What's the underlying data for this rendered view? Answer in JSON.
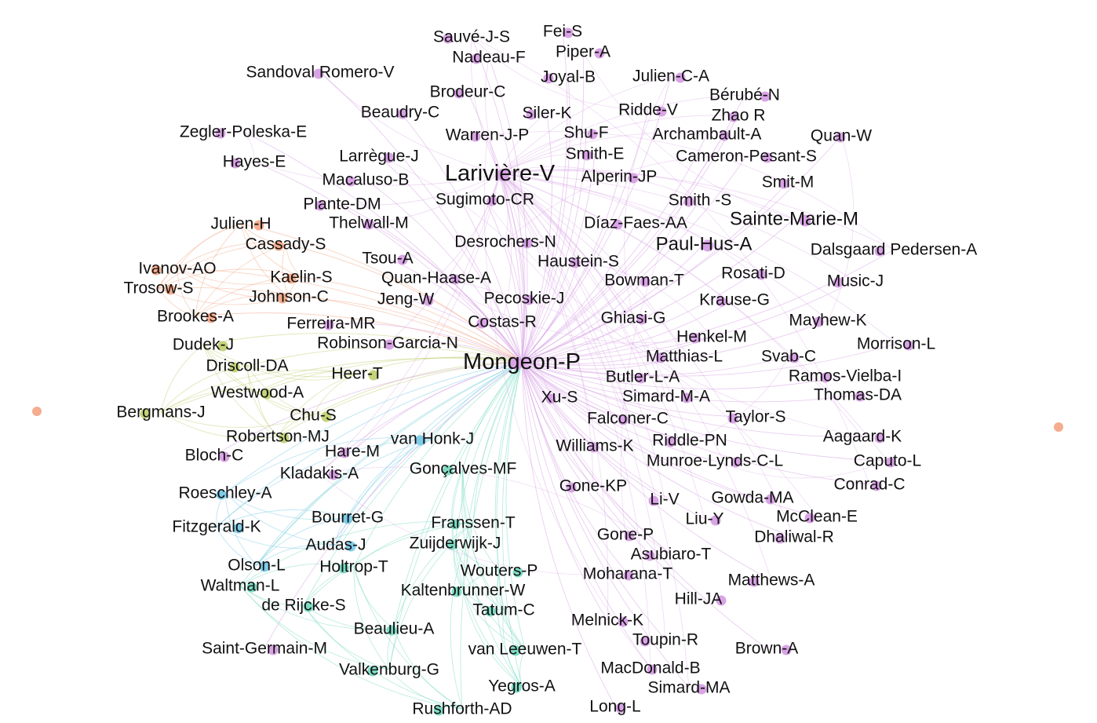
{
  "communities": {
    "purple": "#d9a4e6",
    "orange": "#f4ad8e",
    "olive": "#c5d27a",
    "blue": "#7fcce8",
    "teal": "#7ddcc4"
  },
  "nodes": [
    {
      "label": "Sauvé-J-S",
      "community": "purple",
      "emphasis": "normal"
    },
    {
      "label": "Fei-S",
      "community": "purple",
      "emphasis": "normal"
    },
    {
      "label": "Nadeau-F",
      "community": "purple",
      "emphasis": "normal"
    },
    {
      "label": "Piper-A",
      "community": "purple",
      "emphasis": "normal"
    },
    {
      "label": "Sandoval Romero-V",
      "community": "purple",
      "emphasis": "normal"
    },
    {
      "label": "Joyal-B",
      "community": "purple",
      "emphasis": "normal"
    },
    {
      "label": "Julien-C-A",
      "community": "purple",
      "emphasis": "normal"
    },
    {
      "label": "Brodeur-C",
      "community": "purple",
      "emphasis": "normal"
    },
    {
      "label": "Bérubé-N",
      "community": "purple",
      "emphasis": "normal"
    },
    {
      "label": "Beaudry-C",
      "community": "purple",
      "emphasis": "normal"
    },
    {
      "label": "Siler-K",
      "community": "purple",
      "emphasis": "normal"
    },
    {
      "label": "Ridde-V",
      "community": "purple",
      "emphasis": "normal"
    },
    {
      "label": "Zhao R",
      "community": "purple",
      "emphasis": "normal"
    },
    {
      "label": "Zegler-Poleska-E",
      "community": "purple",
      "emphasis": "normal"
    },
    {
      "label": "Shu-F",
      "community": "purple",
      "emphasis": "normal"
    },
    {
      "label": "Warren-J-P",
      "community": "purple",
      "emphasis": "normal"
    },
    {
      "label": "Archambault-A",
      "community": "purple",
      "emphasis": "normal"
    },
    {
      "label": "Quan-W",
      "community": "purple",
      "emphasis": "normal"
    },
    {
      "label": "Hayes-E",
      "community": "purple",
      "emphasis": "normal"
    },
    {
      "label": "Larrègue-J",
      "community": "purple",
      "emphasis": "normal"
    },
    {
      "label": "Smith-E",
      "community": "purple",
      "emphasis": "normal"
    },
    {
      "label": "Cameron-Pesant-S",
      "community": "purple",
      "emphasis": "normal"
    },
    {
      "label": "Larivière-V",
      "community": "purple",
      "emphasis": "hub"
    },
    {
      "label": "Macaluso-B",
      "community": "purple",
      "emphasis": "normal"
    },
    {
      "label": "Alperin-JP",
      "community": "purple",
      "emphasis": "normal"
    },
    {
      "label": "Smit-M",
      "community": "purple",
      "emphasis": "normal"
    },
    {
      "label": "Plante-DM",
      "community": "purple",
      "emphasis": "normal"
    },
    {
      "label": "Sugimoto-CR",
      "community": "purple",
      "emphasis": "normal"
    },
    {
      "label": "Smith -S",
      "community": "purple",
      "emphasis": "normal"
    },
    {
      "label": "Julien-H",
      "community": "orange",
      "emphasis": "normal"
    },
    {
      "label": "Thelwall-M",
      "community": "purple",
      "emphasis": "normal"
    },
    {
      "label": "Díaz-Faes-AA",
      "community": "purple",
      "emphasis": "normal"
    },
    {
      "label": "Sainte-Marie-M",
      "community": "purple",
      "emphasis": "large"
    },
    {
      "label": "Cassady-S",
      "community": "orange",
      "emphasis": "normal"
    },
    {
      "label": "Desrochers-N",
      "community": "purple",
      "emphasis": "normal"
    },
    {
      "label": "Paul-Hus-A",
      "community": "purple",
      "emphasis": "large"
    },
    {
      "label": "Dalsgaard Pedersen-A",
      "community": "purple",
      "emphasis": "normal"
    },
    {
      "label": "Tsou-A",
      "community": "purple",
      "emphasis": "normal"
    },
    {
      "label": "Haustein-S",
      "community": "purple",
      "emphasis": "normal"
    },
    {
      "label": "Ivanov-AO",
      "community": "orange",
      "emphasis": "normal"
    },
    {
      "label": "Rosati-D",
      "community": "purple",
      "emphasis": "normal"
    },
    {
      "label": "Kaelin-S",
      "community": "orange",
      "emphasis": "normal"
    },
    {
      "label": "Quan-Haase-A",
      "community": "purple",
      "emphasis": "normal"
    },
    {
      "label": "Bowman-T",
      "community": "purple",
      "emphasis": "normal"
    },
    {
      "label": "Music-J",
      "community": "purple",
      "emphasis": "normal"
    },
    {
      "label": "Trosow-S",
      "community": "orange",
      "emphasis": "normal"
    },
    {
      "label": "Johnson-C",
      "community": "orange",
      "emphasis": "normal"
    },
    {
      "label": "Jeng-W",
      "community": "purple",
      "emphasis": "normal"
    },
    {
      "label": "Pecoskie-J",
      "community": "purple",
      "emphasis": "normal"
    },
    {
      "label": "Krause-G",
      "community": "purple",
      "emphasis": "normal"
    },
    {
      "label": "Brookes-A",
      "community": "orange",
      "emphasis": "normal"
    },
    {
      "label": "Ferreira-MR",
      "community": "purple",
      "emphasis": "normal"
    },
    {
      "label": "Costas-R",
      "community": "purple",
      "emphasis": "normal"
    },
    {
      "label": "Ghiasi-G",
      "community": "purple",
      "emphasis": "normal"
    },
    {
      "label": "Mayhew-K",
      "community": "purple",
      "emphasis": "normal"
    },
    {
      "label": "Dudek-J",
      "community": "olive",
      "emphasis": "normal"
    },
    {
      "label": "Robinson-Garcia-N",
      "community": "purple",
      "emphasis": "normal"
    },
    {
      "label": "Henkel-M",
      "community": "purple",
      "emphasis": "normal"
    },
    {
      "label": "Morrison-L",
      "community": "purple",
      "emphasis": "normal"
    },
    {
      "label": "Mongeon-P",
      "community": "purple",
      "emphasis": "hub"
    },
    {
      "label": "Matthias-L",
      "community": "purple",
      "emphasis": "normal"
    },
    {
      "label": "Svab-C",
      "community": "purple",
      "emphasis": "normal"
    },
    {
      "label": "Driscoll-DA",
      "community": "olive",
      "emphasis": "normal"
    },
    {
      "label": "Heer-T",
      "community": "olive",
      "emphasis": "normal"
    },
    {
      "label": "Butler-L-A",
      "community": "purple",
      "emphasis": "normal"
    },
    {
      "label": "Ramos-Vielba-I",
      "community": "purple",
      "emphasis": "normal"
    },
    {
      "label": "Westwood-A",
      "community": "olive",
      "emphasis": "normal"
    },
    {
      "label": "Xu-S",
      "community": "purple",
      "emphasis": "normal"
    },
    {
      "label": "Simard-M-A",
      "community": "purple",
      "emphasis": "normal"
    },
    {
      "label": "Thomas-DA",
      "community": "purple",
      "emphasis": "normal"
    },
    {
      "label": "Bergmans-J",
      "community": "olive",
      "emphasis": "normal"
    },
    {
      "label": "Chu-S",
      "community": "olive",
      "emphasis": "normal"
    },
    {
      "label": "Falconer-C",
      "community": "purple",
      "emphasis": "normal"
    },
    {
      "label": "Taylor-S",
      "community": "purple",
      "emphasis": "normal"
    },
    {
      "label": "Robertson-MJ",
      "community": "olive",
      "emphasis": "normal"
    },
    {
      "label": "van Honk-J",
      "community": "blue",
      "emphasis": "normal"
    },
    {
      "label": "Aagaard-K",
      "community": "purple",
      "emphasis": "normal"
    },
    {
      "label": "Williams-K",
      "community": "purple",
      "emphasis": "normal"
    },
    {
      "label": "Riddle-PN",
      "community": "purple",
      "emphasis": "normal"
    },
    {
      "label": "Bloch-C",
      "community": "purple",
      "emphasis": "normal"
    },
    {
      "label": "Hare-M",
      "community": "purple",
      "emphasis": "normal"
    },
    {
      "label": "Munroe-Lynds-C-L",
      "community": "purple",
      "emphasis": "normal"
    },
    {
      "label": "Caputo-L",
      "community": "purple",
      "emphasis": "normal"
    },
    {
      "label": "Gonçalves-MF",
      "community": "teal",
      "emphasis": "normal"
    },
    {
      "label": "Kladakis-A",
      "community": "purple",
      "emphasis": "normal"
    },
    {
      "label": "Roeschley-A",
      "community": "blue",
      "emphasis": "normal"
    },
    {
      "label": "Gone-KP",
      "community": "purple",
      "emphasis": "normal"
    },
    {
      "label": "Conrad-C",
      "community": "purple",
      "emphasis": "normal"
    },
    {
      "label": "Li-V",
      "community": "purple",
      "emphasis": "normal"
    },
    {
      "label": "Gowda-MA",
      "community": "purple",
      "emphasis": "normal"
    },
    {
      "label": "Bourret-G",
      "community": "blue",
      "emphasis": "normal"
    },
    {
      "label": "Franssen-T",
      "community": "teal",
      "emphasis": "normal"
    },
    {
      "label": "Liu-Y",
      "community": "purple",
      "emphasis": "normal"
    },
    {
      "label": "McClean-E",
      "community": "purple",
      "emphasis": "normal"
    },
    {
      "label": "Fitzgerald-K",
      "community": "blue",
      "emphasis": "normal"
    },
    {
      "label": "Gone-P",
      "community": "purple",
      "emphasis": "normal"
    },
    {
      "label": "Dhaliwal-R",
      "community": "purple",
      "emphasis": "normal"
    },
    {
      "label": "Audas-J",
      "community": "blue",
      "emphasis": "normal"
    },
    {
      "label": "Zuijderwijk-J",
      "community": "teal",
      "emphasis": "normal"
    },
    {
      "label": "Asubiaro-T",
      "community": "purple",
      "emphasis": "normal"
    },
    {
      "label": "Olson-L",
      "community": "blue",
      "emphasis": "normal"
    },
    {
      "label": "Holtrop-T",
      "community": "teal",
      "emphasis": "normal"
    },
    {
      "label": "Wouters-P",
      "community": "teal",
      "emphasis": "normal"
    },
    {
      "label": "Moharana-T",
      "community": "purple",
      "emphasis": "normal"
    },
    {
      "label": "Matthews-A",
      "community": "purple",
      "emphasis": "normal"
    },
    {
      "label": "Waltman-L",
      "community": "teal",
      "emphasis": "normal"
    },
    {
      "label": "Kaltenbrunner-W",
      "community": "teal",
      "emphasis": "normal"
    },
    {
      "label": "Hill-JA",
      "community": "purple",
      "emphasis": "normal"
    },
    {
      "label": "de Rijcke-S",
      "community": "teal",
      "emphasis": "normal"
    },
    {
      "label": "Tatum-C",
      "community": "teal",
      "emphasis": "normal"
    },
    {
      "label": "Melnick-K",
      "community": "purple",
      "emphasis": "normal"
    },
    {
      "label": "Beaulieu-A",
      "community": "teal",
      "emphasis": "normal"
    },
    {
      "label": "Toupin-R",
      "community": "purple",
      "emphasis": "normal"
    },
    {
      "label": "Saint-Germain-M",
      "community": "purple",
      "emphasis": "normal"
    },
    {
      "label": "van Leeuwen-T",
      "community": "teal",
      "emphasis": "normal"
    },
    {
      "label": "Brown-A",
      "community": "purple",
      "emphasis": "normal"
    },
    {
      "label": "MacDonald-B",
      "community": "purple",
      "emphasis": "normal"
    },
    {
      "label": "Valkenburg-G",
      "community": "teal",
      "emphasis": "normal"
    },
    {
      "label": "Simard-MA",
      "community": "purple",
      "emphasis": "normal"
    },
    {
      "label": "Yegros-A",
      "community": "teal",
      "emphasis": "normal"
    },
    {
      "label": "Rushforth-AD",
      "community": "teal",
      "emphasis": "normal"
    },
    {
      "label": "Long-L",
      "community": "purple",
      "emphasis": "normal"
    },
    {
      "label": "",
      "community": "orange",
      "emphasis": "isolate"
    },
    {
      "label": "",
      "community": "orange",
      "emphasis": "isolate"
    }
  ]
}
